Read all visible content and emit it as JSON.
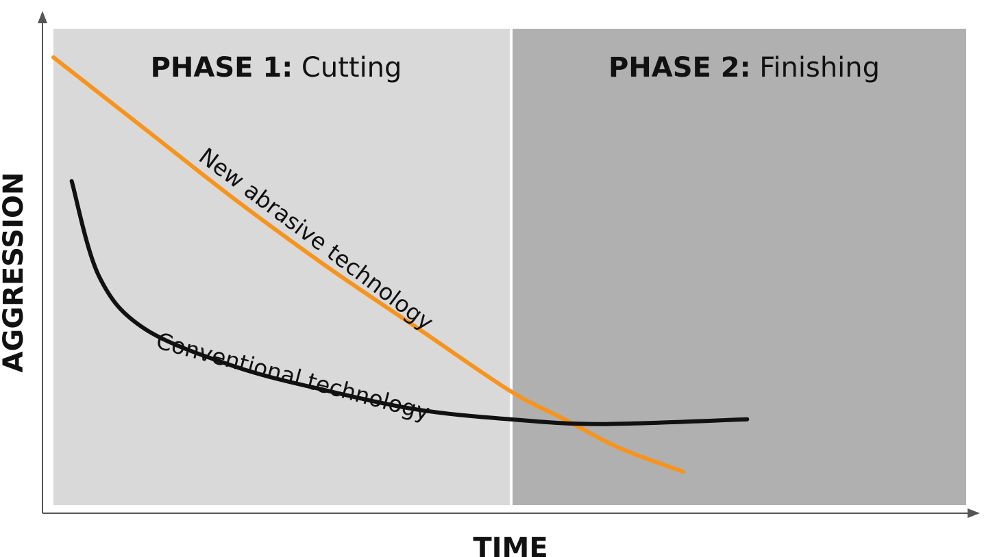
{
  "chart_data": {
    "type": "line",
    "xlabel": "TIME",
    "ylabel": "AGGRESSION",
    "regions": [
      {
        "prefix": "PHASE 1:",
        "name": "Cutting",
        "color": "#d9d9d9"
      },
      {
        "prefix": "PHASE 2:",
        "name": "Finishing",
        "color": "#b0b0b0"
      }
    ],
    "series": [
      {
        "name": "New abrasive technology",
        "color": "#f7941d",
        "x": [
          0.0,
          0.1,
          0.2,
          0.3,
          0.4,
          0.5,
          0.56,
          0.62,
          0.69
        ],
        "y": [
          0.94,
          0.79,
          0.64,
          0.5,
          0.37,
          0.24,
          0.18,
          0.12,
          0.07
        ]
      },
      {
        "name": "Conventional technology",
        "color": "#111111",
        "x": [
          0.02,
          0.05,
          0.1,
          0.2,
          0.3,
          0.4,
          0.5,
          0.6,
          0.76
        ],
        "y": [
          0.68,
          0.48,
          0.37,
          0.29,
          0.24,
          0.2,
          0.18,
          0.17,
          0.18
        ]
      }
    ],
    "xlim": [
      0,
      1
    ],
    "ylim": [
      0,
      1
    ],
    "grid": false,
    "legend": "none"
  }
}
